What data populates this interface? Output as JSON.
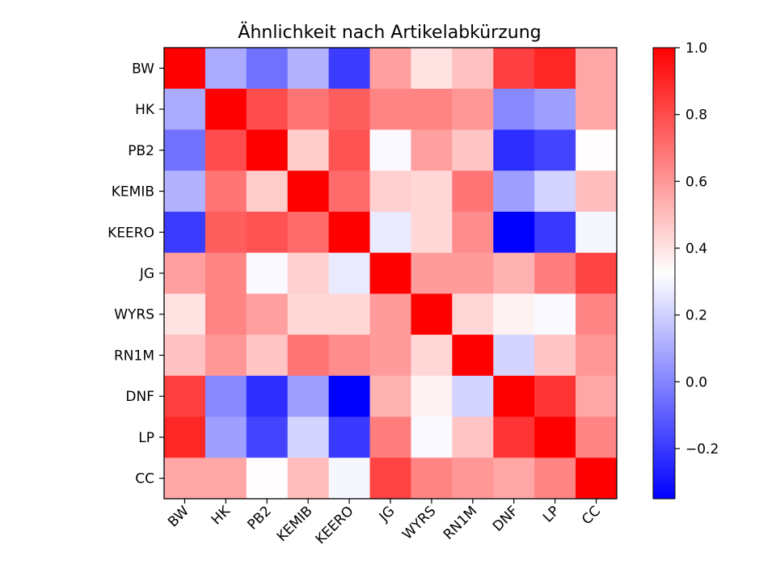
{
  "chart_data": {
    "type": "heatmap",
    "title": "Ähnlichkeit nach Artikelabkürzung",
    "labels": [
      "BW",
      "HK",
      "PB2",
      "KEMIB",
      "KEERO",
      "JG",
      "WYRS",
      "RN1M",
      "DNF",
      "LP",
      "CC"
    ],
    "matrix": [
      [
        1.0,
        0.1,
        -0.05,
        0.12,
        -0.19,
        0.58,
        0.4,
        0.49,
        0.83,
        0.9,
        0.56
      ],
      [
        0.1,
        1.0,
        0.8,
        0.69,
        0.75,
        0.65,
        0.65,
        0.6,
        0.01,
        0.07,
        0.56
      ],
      [
        -0.05,
        0.8,
        1.0,
        0.46,
        0.78,
        0.31,
        0.58,
        0.48,
        -0.23,
        -0.17,
        0.33
      ],
      [
        0.12,
        0.69,
        0.46,
        1.0,
        0.72,
        0.45,
        0.43,
        0.69,
        0.07,
        0.21,
        0.5
      ],
      [
        -0.19,
        0.75,
        0.78,
        0.72,
        1.0,
        0.27,
        0.43,
        0.63,
        -0.35,
        -0.2,
        0.3
      ],
      [
        0.58,
        0.65,
        0.31,
        0.45,
        0.27,
        1.0,
        0.59,
        0.59,
        0.53,
        0.67,
        0.82
      ],
      [
        0.4,
        0.65,
        0.58,
        0.43,
        0.43,
        0.59,
        1.0,
        0.43,
        0.36,
        0.31,
        0.65
      ],
      [
        0.49,
        0.6,
        0.48,
        0.69,
        0.63,
        0.59,
        0.43,
        1.0,
        0.21,
        0.48,
        0.6
      ],
      [
        0.83,
        0.01,
        -0.23,
        0.07,
        -0.35,
        0.53,
        0.36,
        0.21,
        1.0,
        0.86,
        0.56
      ],
      [
        0.9,
        0.07,
        -0.17,
        0.21,
        -0.2,
        0.67,
        0.31,
        0.48,
        0.86,
        1.0,
        0.65
      ],
      [
        0.56,
        0.56,
        0.33,
        0.5,
        0.3,
        0.82,
        0.65,
        0.6,
        0.56,
        0.65,
        1.0
      ]
    ],
    "colormap": "bwr",
    "colors": {
      "low": "#0000ff",
      "mid": "#ffffff",
      "high": "#ff0000"
    },
    "vmin": -0.35,
    "vmax": 1.0,
    "colorbar": {
      "ticks": [
        1.0,
        0.8,
        0.6,
        0.4,
        0.2,
        0.0,
        -0.2
      ],
      "tick_labels": [
        "1.0",
        "0.8",
        "0.6",
        "0.4",
        "0.2",
        "0.0",
        "−0.2"
      ],
      "placement": "right"
    },
    "x_tick_rotation": "45",
    "grid": false,
    "legend": "none"
  }
}
